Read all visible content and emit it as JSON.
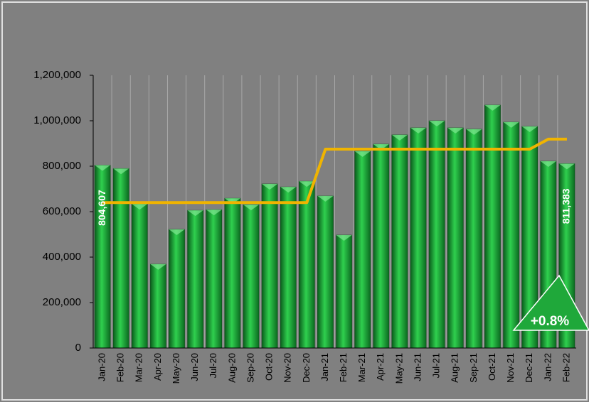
{
  "chart_data": {
    "type": "bar",
    "categories": [
      "Jan-20",
      "Feb-20",
      "Mar-20",
      "Apr-20",
      "May-20",
      "Jun-20",
      "Jul-20",
      "Aug-20",
      "Sep-20",
      "Oct-20",
      "Nov-20",
      "Dec-20",
      "Jan-21",
      "Feb-21",
      "Mar-21",
      "Apr-21",
      "May-21",
      "Jun-21",
      "Jul-21",
      "Aug-21",
      "Sep-21",
      "Oct-21",
      "Nov-21",
      "Dec-21",
      "Jan-22",
      "Feb-22"
    ],
    "series": [
      {
        "type": "bar",
        "color": "#1fa83a",
        "values": [
          804607,
          790000,
          634000,
          369000,
          522000,
          606000,
          609000,
          659000,
          631000,
          722000,
          709000,
          734000,
          669000,
          497000,
          866000,
          897000,
          938000,
          969000,
          1000000,
          969000,
          963000,
          1069000,
          994000,
          975000,
          822000,
          811383
        ],
        "value_labels": [
          "804,607",
          null,
          null,
          null,
          null,
          null,
          null,
          null,
          null,
          null,
          null,
          null,
          null,
          null,
          null,
          null,
          null,
          null,
          null,
          null,
          null,
          null,
          null,
          null,
          null,
          "811,383"
        ]
      },
      {
        "type": "line",
        "color": "#f0b400",
        "values": [
          640000,
          640000,
          640000,
          640000,
          640000,
          640000,
          640000,
          640000,
          640000,
          640000,
          640000,
          640000,
          875000,
          875000,
          875000,
          875000,
          875000,
          875000,
          875000,
          875000,
          875000,
          875000,
          875000,
          875000,
          919000,
          919000
        ]
      }
    ],
    "ylim": [
      0,
      1200000
    ],
    "yticks": [
      0,
      {
        "value": 200000,
        "label": "200,000"
      },
      {
        "value": 400000,
        "label": "400,000"
      },
      {
        "value": 600000,
        "label": "600,000"
      },
      {
        "value": 800000,
        "label": "800,000"
      },
      {
        "value": 1000000,
        "label": "1,000,000"
      },
      {
        "value": 1200000,
        "label": "1,200,000"
      }
    ],
    "annotation": "+0.8%"
  }
}
